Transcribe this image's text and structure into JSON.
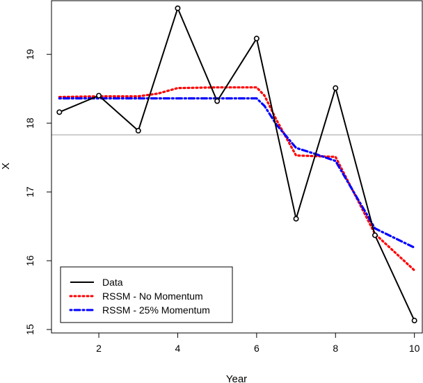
{
  "chart_data": {
    "type": "line",
    "title": "",
    "xlabel": "Year",
    "ylabel": "X",
    "xlim": [
      0.8,
      10.2
    ],
    "ylim": [
      14.95,
      19.78
    ],
    "x_ticks": [
      2,
      4,
      6,
      8,
      10
    ],
    "y_ticks": [
      15,
      16,
      17,
      18,
      19
    ],
    "reference_line": {
      "y": 17.83,
      "color": "#bebebe"
    },
    "series": [
      {
        "name": "Data",
        "color": "#000000",
        "style": "solid",
        "markers": true,
        "x": [
          1,
          2,
          3,
          4,
          5,
          6,
          7,
          8,
          9,
          10
        ],
        "y": [
          18.16,
          18.4,
          17.89,
          19.67,
          18.32,
          19.23,
          16.61,
          18.51,
          16.37,
          15.13
        ]
      },
      {
        "name": "RSSM - No Momentum",
        "color": "#ff0000",
        "style": "dotted",
        "markers": false,
        "x": [
          1,
          2,
          3,
          3.5,
          4,
          5,
          6,
          6.2,
          6.5,
          7,
          8,
          9,
          10
        ],
        "y": [
          18.38,
          18.39,
          18.39,
          18.43,
          18.51,
          18.52,
          18.52,
          18.4,
          18.05,
          17.53,
          17.51,
          16.39,
          15.86
        ]
      },
      {
        "name": "RSSM - 25% Momentum",
        "color": "#0000ff",
        "style": "dashdot",
        "markers": false,
        "x": [
          1,
          2,
          3,
          4,
          5,
          6,
          6.2,
          6.5,
          7,
          7.5,
          8,
          9,
          10
        ],
        "y": [
          18.36,
          18.36,
          18.36,
          18.36,
          18.36,
          18.36,
          18.25,
          17.98,
          17.64,
          17.55,
          17.45,
          16.47,
          16.19
        ]
      }
    ],
    "legend": {
      "position": "bottom-left",
      "entries": [
        "Data",
        "RSSM - No Momentum",
        "RSSM - 25% Momentum"
      ]
    }
  }
}
